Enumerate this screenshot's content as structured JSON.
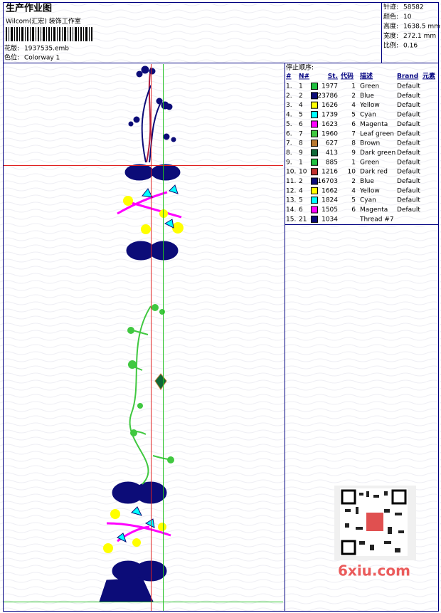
{
  "header": {
    "title": "生产作业图",
    "subtitle": "Wilcom(汇宏) 装饰工作室",
    "design_label": "花版:",
    "design": "1937535.emb",
    "colorway_label": "色位:",
    "colorway": "Colorway 1"
  },
  "stats": [
    {
      "label": "针迹:",
      "value": "58582"
    },
    {
      "label": "颜色:",
      "value": "10"
    },
    {
      "label": "高度:",
      "value": "1638.5 mm"
    },
    {
      "label": "宽度:",
      "value": "272.1 mm"
    },
    {
      "label": "比例:",
      "value": "0.16"
    }
  ],
  "stop_sequence": {
    "title": "停止顺序:",
    "columns": [
      "#",
      "N#",
      "St.",
      "代码",
      "描述",
      "Brand",
      "元素"
    ],
    "rows": [
      {
        "index": "1.",
        "needle": "1",
        "color": "#20c040",
        "stitches": "1977",
        "code": "1",
        "description": "Green",
        "brand": "Default"
      },
      {
        "index": "2.",
        "needle": "2",
        "color": "#0c0c78",
        "stitches": "23786",
        "code": "2",
        "description": "Blue",
        "brand": "Default"
      },
      {
        "index": "3.",
        "needle": "4",
        "color": "#ffff00",
        "stitches": "1626",
        "code": "4",
        "description": "Yellow",
        "brand": "Default"
      },
      {
        "index": "4.",
        "needle": "5",
        "color": "#00ffff",
        "stitches": "1739",
        "code": "5",
        "description": "Cyan",
        "brand": "Default"
      },
      {
        "index": "5.",
        "needle": "6",
        "color": "#ff00ff",
        "stitches": "1623",
        "code": "6",
        "description": "Magenta",
        "brand": "Default"
      },
      {
        "index": "6.",
        "needle": "7",
        "color": "#40c840",
        "stitches": "1960",
        "code": "7",
        "description": "Leaf green",
        "brand": "Default"
      },
      {
        "index": "7.",
        "needle": "8",
        "color": "#b87830",
        "stitches": "627",
        "code": "8",
        "description": "Brown",
        "brand": "Default"
      },
      {
        "index": "8.",
        "needle": "9",
        "color": "#106838",
        "stitches": "413",
        "code": "9",
        "description": "Dark green",
        "brand": "Default"
      },
      {
        "index": "9.",
        "needle": "1",
        "color": "#20c040",
        "stitches": "885",
        "code": "1",
        "description": "Green",
        "brand": "Default"
      },
      {
        "index": "10.",
        "needle": "10",
        "color": "#c03030",
        "stitches": "1216",
        "code": "10",
        "description": "Dark red",
        "brand": "Default"
      },
      {
        "index": "11.",
        "needle": "2",
        "color": "#0c0c78",
        "stitches": "16703",
        "code": "2",
        "description": "Blue",
        "brand": "Default"
      },
      {
        "index": "12.",
        "needle": "4",
        "color": "#ffff00",
        "stitches": "1662",
        "code": "4",
        "description": "Yellow",
        "brand": "Default"
      },
      {
        "index": "13.",
        "needle": "5",
        "color": "#00ffff",
        "stitches": "1824",
        "code": "5",
        "description": "Cyan",
        "brand": "Default"
      },
      {
        "index": "14.",
        "needle": "6",
        "color": "#ff00ff",
        "stitches": "1505",
        "code": "6",
        "description": "Magenta",
        "brand": "Default"
      },
      {
        "index": "15.",
        "needle": "21",
        "color": "#0c0c78",
        "stitches": "1034",
        "code": null,
        "description": "Thread #7",
        "brand": null
      }
    ]
  },
  "watermark": "6xiu.com"
}
